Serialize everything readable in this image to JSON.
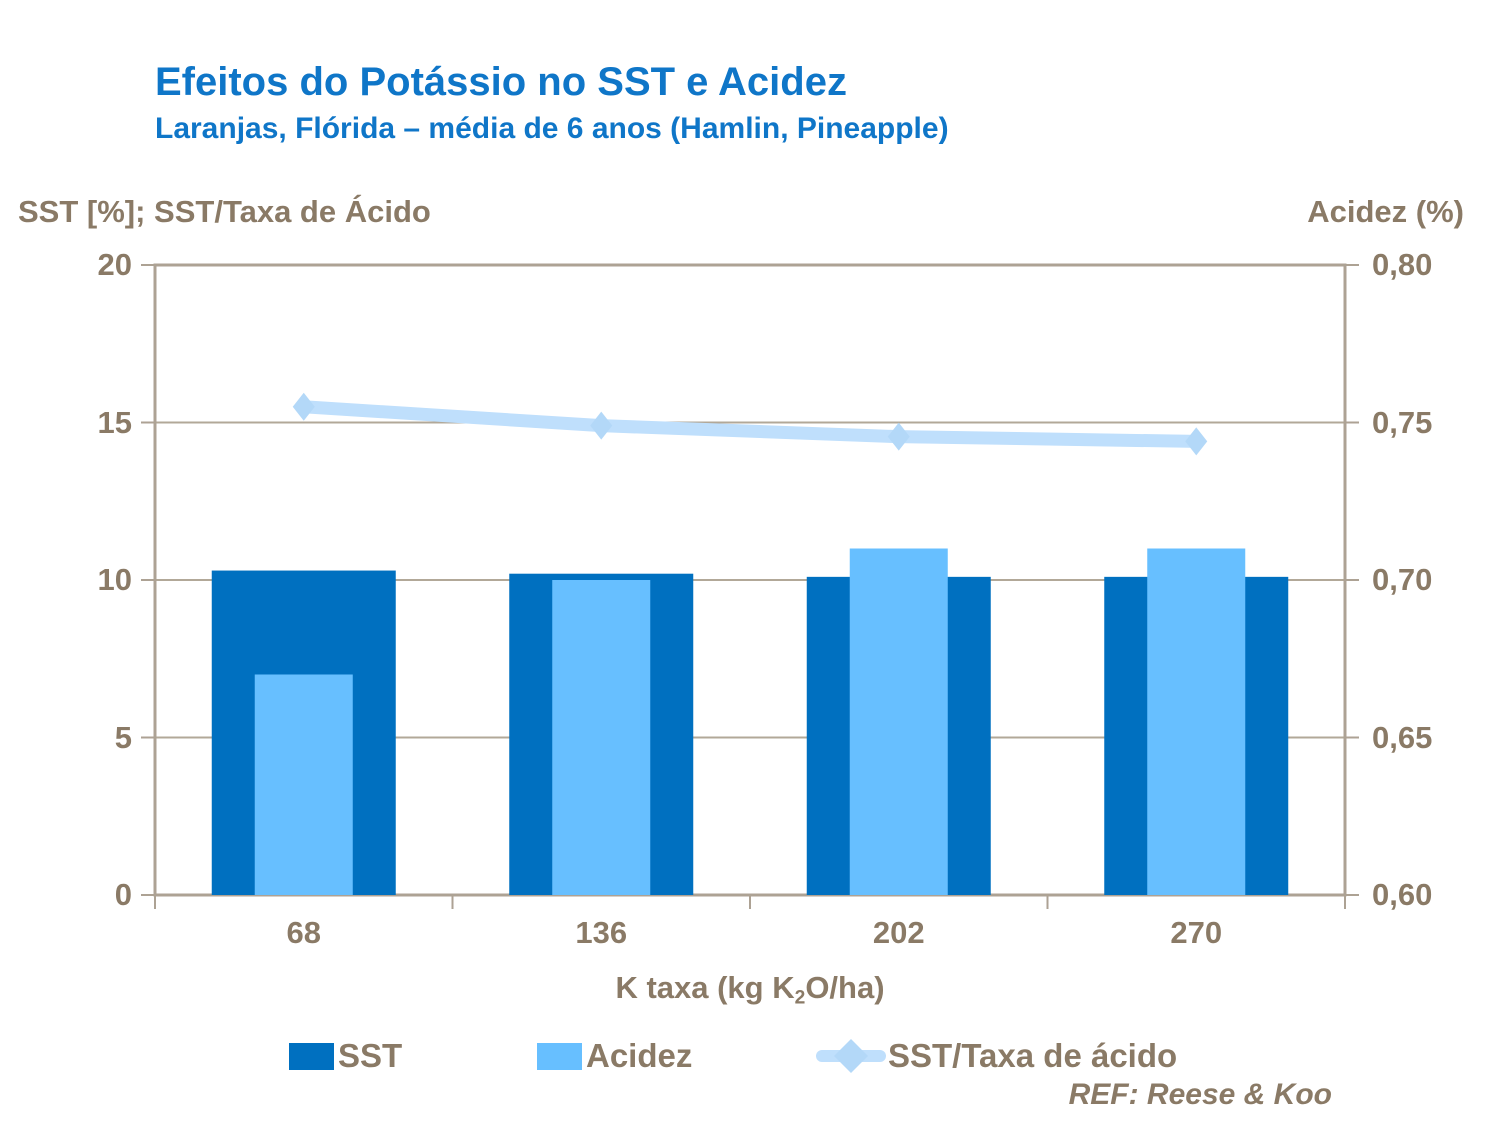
{
  "header": {
    "title": "Efeitos do Potássio no SST e Acidez",
    "subtitle": "Laranjas, Flórida – média de 6 anos (Hamlin, Pineapple)"
  },
  "axes": {
    "left_title": "SST [%]; SST/Taxa de Ácido",
    "right_title": "Acidez (%)",
    "left_ticks": [
      "20",
      "15",
      "10",
      "5",
      "0"
    ],
    "right_ticks": [
      "0,80",
      "0,75",
      "0,70",
      "0,65",
      "0,60"
    ],
    "x_title": {
      "prefix": "K taxa (kg K",
      "sub": "2",
      "suffix": "O/ha)"
    }
  },
  "chart_data": {
    "type": "bar+line combo",
    "categories": [
      "68",
      "136",
      "202",
      "270"
    ],
    "series": [
      {
        "name": "SST",
        "type": "bar",
        "axis": "left",
        "values": [
          10.3,
          10.2,
          10.1,
          10.1
        ],
        "color": "#0070C0"
      },
      {
        "name": "Acidez",
        "type": "bar",
        "axis": "right",
        "values": [
          0.67,
          0.7,
          0.71,
          0.71
        ],
        "color": "#67BFFF"
      },
      {
        "name": "SST/Taxa de ácido",
        "type": "line",
        "axis": "left",
        "values": [
          15.5,
          14.9,
          14.55,
          14.4
        ],
        "color": "#BFDFFC",
        "marker_color": "#B3D8F8",
        "marker": "diamond"
      }
    ],
    "left_axis_range": [
      0,
      20
    ],
    "right_axis_range": [
      0.6,
      0.8
    ],
    "grid": "horizontal",
    "legend_position": "bottom"
  },
  "footer": {
    "ref": "REF: Reese & Koo"
  },
  "colors": {
    "title_blue": "#0F76C8",
    "text_brown": "#8A7A66",
    "axis_tan": "#ADA294",
    "grid_tan": "#B2A898"
  }
}
